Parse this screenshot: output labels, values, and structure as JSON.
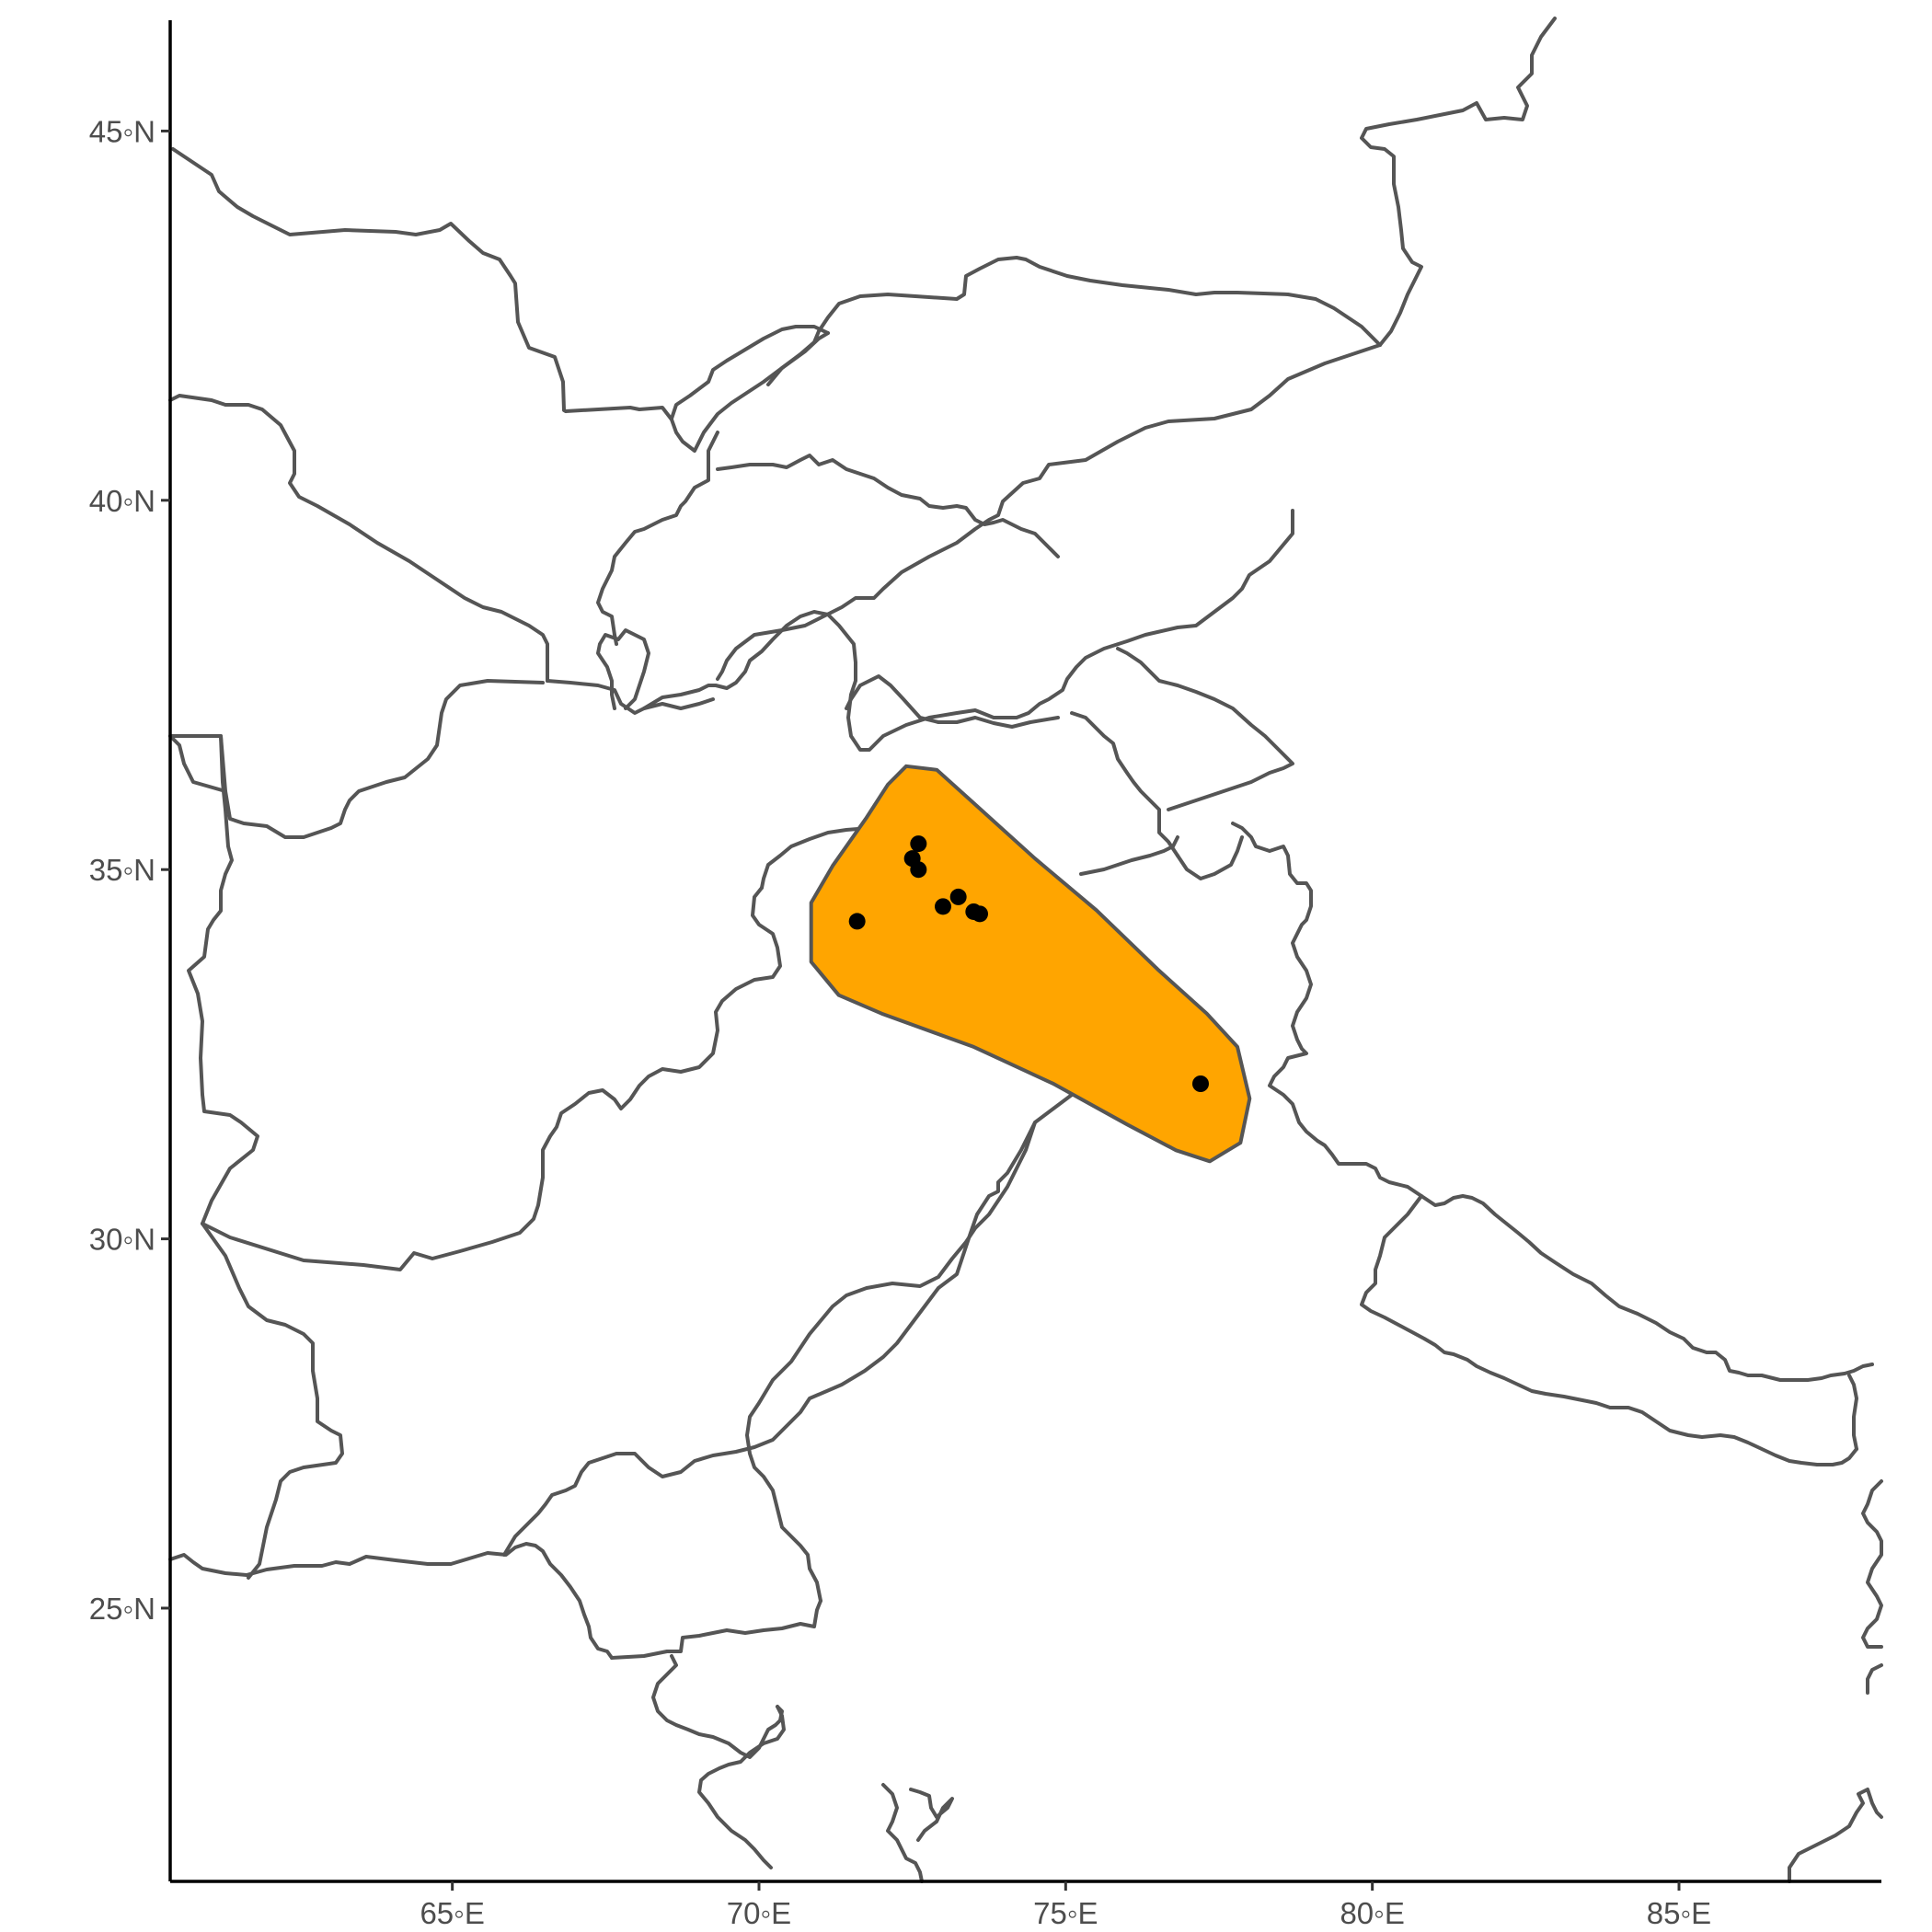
{
  "map": {
    "range_fill": "#FFA500",
    "border_color": "#555555",
    "point_color": "#000000",
    "x_ticks": [
      {
        "value": 65,
        "label": "65◦E"
      },
      {
        "value": 70,
        "label": "70◦E"
      },
      {
        "value": 75,
        "label": "75◦E"
      },
      {
        "value": 80,
        "label": "80◦E"
      },
      {
        "value": 85,
        "label": "85◦E"
      }
    ],
    "y_ticks": [
      {
        "value": 25,
        "label": "25◦N"
      },
      {
        "value": 30,
        "label": "30◦N"
      },
      {
        "value": 35,
        "label": "35◦N"
      },
      {
        "value": 40,
        "label": "40◦N"
      },
      {
        "value": 45,
        "label": "45◦N"
      }
    ],
    "xlim": [
      60.4,
      88.3
    ],
    "ylim": [
      21.3,
      46.5
    ],
    "occurrences": [
      {
        "lon": 71.6,
        "lat": 34.3
      },
      {
        "lon": 72.5,
        "lat": 35.15
      },
      {
        "lon": 72.6,
        "lat": 35.35
      },
      {
        "lon": 72.6,
        "lat": 35.0
      },
      {
        "lon": 73.0,
        "lat": 34.5
      },
      {
        "lon": 73.25,
        "lat": 34.63
      },
      {
        "lon": 73.5,
        "lat": 34.43
      },
      {
        "lon": 73.6,
        "lat": 34.4
      },
      {
        "lon": 77.2,
        "lat": 32.1
      }
    ]
  }
}
